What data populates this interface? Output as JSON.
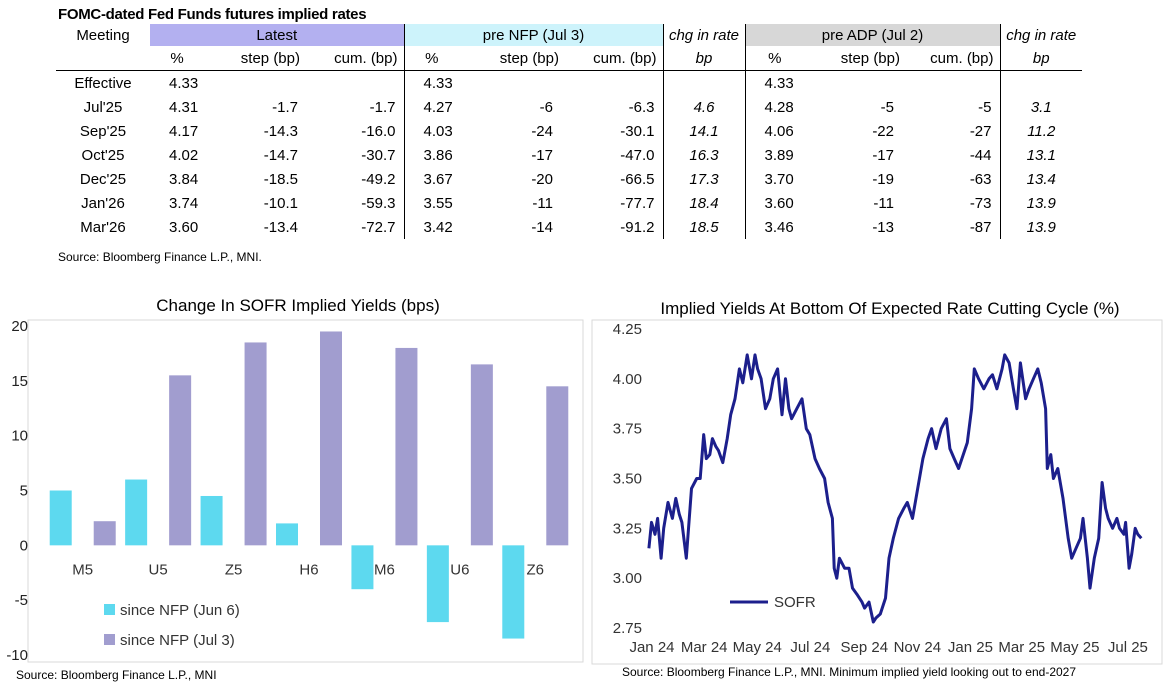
{
  "table": {
    "title": "FOMC-dated Fed Funds futures implied rates",
    "meeting_header": "Meeting",
    "groups": {
      "latest": "Latest",
      "pre_nfp": "pre NFP (Jul 3)",
      "chg1": "chg in rate",
      "pre_adp": "pre ADP (Jul 2)",
      "chg2": "chg in rate"
    },
    "subheaders": {
      "pct": "%",
      "step": "step (bp)",
      "cum": "cum. (bp)",
      "bp": "bp"
    },
    "rows": [
      {
        "meeting": "Effective",
        "lat_pct": "4.33",
        "lat_step": "",
        "lat_cum": "",
        "nfp_pct": "4.33",
        "nfp_step": "",
        "nfp_cum": "",
        "chg1": "",
        "adp_pct": "4.33",
        "adp_step": "",
        "adp_cum": "",
        "chg2": ""
      },
      {
        "meeting": "Jul'25",
        "lat_pct": "4.31",
        "lat_step": "-1.7",
        "lat_cum": "-1.7",
        "nfp_pct": "4.27",
        "nfp_step": "-6",
        "nfp_cum": "-6.3",
        "chg1": "4.6",
        "adp_pct": "4.28",
        "adp_step": "-5",
        "adp_cum": "-5",
        "chg2": "3.1"
      },
      {
        "meeting": "Sep'25",
        "lat_pct": "4.17",
        "lat_step": "-14.3",
        "lat_cum": "-16.0",
        "nfp_pct": "4.03",
        "nfp_step": "-24",
        "nfp_cum": "-30.1",
        "chg1": "14.1",
        "adp_pct": "4.06",
        "adp_step": "-22",
        "adp_cum": "-27",
        "chg2": "11.2"
      },
      {
        "meeting": "Oct'25",
        "lat_pct": "4.02",
        "lat_step": "-14.7",
        "lat_cum": "-30.7",
        "nfp_pct": "3.86",
        "nfp_step": "-17",
        "nfp_cum": "-47.0",
        "chg1": "16.3",
        "adp_pct": "3.89",
        "adp_step": "-17",
        "adp_cum": "-44",
        "chg2": "13.1"
      },
      {
        "meeting": "Dec'25",
        "lat_pct": "3.84",
        "lat_step": "-18.5",
        "lat_cum": "-49.2",
        "nfp_pct": "3.67",
        "nfp_step": "-20",
        "nfp_cum": "-66.5",
        "chg1": "17.3",
        "adp_pct": "3.70",
        "adp_step": "-19",
        "adp_cum": "-63",
        "chg2": "13.4"
      },
      {
        "meeting": "Jan'26",
        "lat_pct": "3.74",
        "lat_step": "-10.1",
        "lat_cum": "-59.3",
        "nfp_pct": "3.55",
        "nfp_step": "-11",
        "nfp_cum": "-77.7",
        "chg1": "18.4",
        "adp_pct": "3.60",
        "adp_step": "-11",
        "adp_cum": "-73",
        "chg2": "13.9"
      },
      {
        "meeting": "Mar'26",
        "lat_pct": "3.60",
        "lat_step": "-13.4",
        "lat_cum": "-72.7",
        "nfp_pct": "3.42",
        "nfp_step": "-14",
        "nfp_cum": "-91.2",
        "chg1": "18.5",
        "adp_pct": "3.46",
        "adp_step": "-13",
        "adp_cum": "-87",
        "chg2": "13.9"
      }
    ],
    "source": "Source: Bloomberg Finance L.P., MNI."
  },
  "colors": {
    "latest_bg": "#b3b0f0",
    "nfp_bg": "#cdf3fb",
    "adp_bg": "#d7d7d7",
    "cyan_bar": "#5dd9ef",
    "purple_bar": "#a19dcf",
    "line": "#1c1f8c"
  },
  "chart_data": [
    {
      "type": "bar",
      "title": "Change In SOFR Implied Yields (bps)",
      "categories": [
        "M5",
        "U5",
        "Z5",
        "H6",
        "M6",
        "U6",
        "Z6"
      ],
      "series": [
        {
          "name": "since NFP (Jun 6)",
          "values": [
            5,
            6,
            4.5,
            2,
            -4,
            -7,
            -8.5
          ]
        },
        {
          "name": "since NFP (Jul 3)",
          "values": [
            2.2,
            15.5,
            18.5,
            19.5,
            18,
            16.5,
            14.5
          ]
        }
      ],
      "ylim": [
        -10,
        20
      ],
      "yticks": [
        "20",
        "15",
        "10",
        "5",
        "0",
        "-5",
        "-10"
      ],
      "legend_position": "bottom-left",
      "source": "Source: Bloomberg Finance L.P., MNI"
    },
    {
      "type": "line",
      "title": "Implied Yields At Bottom Of Expected Rate Cutting Cycle (%)",
      "series": [
        {
          "name": "SOFR",
          "points": [
            [
              "2024-01-02",
              3.15
            ],
            [
              "2024-01-05",
              3.28
            ],
            [
              "2024-01-09",
              3.22
            ],
            [
              "2024-01-12",
              3.3
            ],
            [
              "2024-01-16",
              3.1
            ],
            [
              "2024-01-19",
              3.25
            ],
            [
              "2024-01-24",
              3.38
            ],
            [
              "2024-01-29",
              3.3
            ],
            [
              "2024-02-02",
              3.4
            ],
            [
              "2024-02-06",
              3.32
            ],
            [
              "2024-02-09",
              3.28
            ],
            [
              "2024-02-14",
              3.1
            ],
            [
              "2024-02-20",
              3.45
            ],
            [
              "2024-02-26",
              3.5
            ],
            [
              "2024-03-01",
              3.5
            ],
            [
              "2024-03-05",
              3.72
            ],
            [
              "2024-03-08",
              3.6
            ],
            [
              "2024-03-12",
              3.62
            ],
            [
              "2024-03-15",
              3.7
            ],
            [
              "2024-03-19",
              3.66
            ],
            [
              "2024-03-22",
              3.64
            ],
            [
              "2024-03-27",
              3.58
            ],
            [
              "2024-04-01",
              3.7
            ],
            [
              "2024-04-05",
              3.82
            ],
            [
              "2024-04-10",
              3.9
            ],
            [
              "2024-04-15",
              4.05
            ],
            [
              "2024-04-19",
              3.98
            ],
            [
              "2024-04-24",
              4.12
            ],
            [
              "2024-04-29",
              4.0
            ],
            [
              "2024-05-03",
              4.12
            ],
            [
              "2024-05-06",
              4.05
            ],
            [
              "2024-05-10",
              4.0
            ],
            [
              "2024-05-15",
              3.85
            ],
            [
              "2024-05-20",
              3.9
            ],
            [
              "2024-05-24",
              4.0
            ],
            [
              "2024-05-29",
              4.05
            ],
            [
              "2024-06-03",
              3.82
            ],
            [
              "2024-06-07",
              4.0
            ],
            [
              "2024-06-11",
              3.85
            ],
            [
              "2024-06-14",
              3.8
            ],
            [
              "2024-06-20",
              3.85
            ],
            [
              "2024-06-26",
              3.9
            ],
            [
              "2024-07-01",
              3.75
            ],
            [
              "2024-07-05",
              3.72
            ],
            [
              "2024-07-11",
              3.6
            ],
            [
              "2024-07-16",
              3.55
            ],
            [
              "2024-07-22",
              3.5
            ],
            [
              "2024-07-26",
              3.38
            ],
            [
              "2024-07-31",
              3.3
            ],
            [
              "2024-08-02",
              3.05
            ],
            [
              "2024-08-05",
              3.0
            ],
            [
              "2024-08-08",
              3.1
            ],
            [
              "2024-08-14",
              3.05
            ],
            [
              "2024-08-19",
              3.05
            ],
            [
              "2024-08-23",
              2.95
            ],
            [
              "2024-08-28",
              2.92
            ],
            [
              "2024-09-03",
              2.88
            ],
            [
              "2024-09-06",
              2.85
            ],
            [
              "2024-09-11",
              2.88
            ],
            [
              "2024-09-16",
              2.78
            ],
            [
              "2024-09-19",
              2.8
            ],
            [
              "2024-09-24",
              2.82
            ],
            [
              "2024-09-30",
              2.9
            ],
            [
              "2024-10-04",
              3.1
            ],
            [
              "2024-10-09",
              3.2
            ],
            [
              "2024-10-15",
              3.3
            ],
            [
              "2024-10-21",
              3.35
            ],
            [
              "2024-10-25",
              3.38
            ],
            [
              "2024-10-31",
              3.3
            ],
            [
              "2024-11-06",
              3.45
            ],
            [
              "2024-11-12",
              3.6
            ],
            [
              "2024-11-18",
              3.7
            ],
            [
              "2024-11-22",
              3.75
            ],
            [
              "2024-11-27",
              3.65
            ],
            [
              "2024-12-03",
              3.75
            ],
            [
              "2024-12-09",
              3.8
            ],
            [
              "2024-12-13",
              3.65
            ],
            [
              "2024-12-18",
              3.6
            ],
            [
              "2024-12-23",
              3.55
            ],
            [
              "2025-01-02",
              3.68
            ],
            [
              "2025-01-07",
              3.85
            ],
            [
              "2025-01-10",
              4.05
            ],
            [
              "2025-01-15",
              4.0
            ],
            [
              "2025-01-21",
              3.95
            ],
            [
              "2025-01-27",
              4.0
            ],
            [
              "2025-01-31",
              4.02
            ],
            [
              "2025-02-05",
              3.95
            ],
            [
              "2025-02-11",
              4.05
            ],
            [
              "2025-02-14",
              4.12
            ],
            [
              "2025-02-19",
              4.08
            ],
            [
              "2025-02-24",
              3.95
            ],
            [
              "2025-02-28",
              3.85
            ],
            [
              "2025-03-04",
              4.08
            ],
            [
              "2025-03-10",
              3.9
            ],
            [
              "2025-03-14",
              3.95
            ],
            [
              "2025-03-19",
              4.0
            ],
            [
              "2025-03-24",
              4.05
            ],
            [
              "2025-03-28",
              3.98
            ],
            [
              "2025-04-02",
              3.85
            ],
            [
              "2025-04-04",
              3.55
            ],
            [
              "2025-04-08",
              3.62
            ],
            [
              "2025-04-11",
              3.5
            ],
            [
              "2025-04-16",
              3.55
            ],
            [
              "2025-04-22",
              3.4
            ],
            [
              "2025-04-28",
              3.2
            ],
            [
              "2025-05-02",
              3.1
            ],
            [
              "2025-05-07",
              3.15
            ],
            [
              "2025-05-12",
              3.2
            ],
            [
              "2025-05-15",
              3.3
            ],
            [
              "2025-05-20",
              3.1
            ],
            [
              "2025-05-23",
              2.95
            ],
            [
              "2025-05-28",
              3.1
            ],
            [
              "2025-06-02",
              3.2
            ],
            [
              "2025-06-06",
              3.48
            ],
            [
              "2025-06-10",
              3.35
            ],
            [
              "2025-06-13",
              3.3
            ],
            [
              "2025-06-18",
              3.25
            ],
            [
              "2025-06-23",
              3.3
            ],
            [
              "2025-06-26",
              3.25
            ],
            [
              "2025-07-01",
              3.22
            ],
            [
              "2025-07-03",
              3.28
            ],
            [
              "2025-07-07",
              3.05
            ],
            [
              "2025-07-10",
              3.12
            ],
            [
              "2025-07-14",
              3.25
            ],
            [
              "2025-07-17",
              3.22
            ],
            [
              "2025-07-21",
              3.2
            ]
          ]
        }
      ],
      "xticks": [
        "Jan 24",
        "Mar 24",
        "May 24",
        "Jul 24",
        "Sep 24",
        "Nov 24",
        "Jan 25",
        "Mar 25",
        "May 25",
        "Jul 25"
      ],
      "xlim": [
        "2024-01-01",
        "2025-07-31"
      ],
      "yticks": [
        "4.25",
        "4.00",
        "3.75",
        "3.50",
        "3.25",
        "3.00",
        "2.75"
      ],
      "ylim": [
        2.75,
        4.25
      ],
      "legend_position": "bottom-left",
      "source": "Source: Bloomberg Finance L.P., MNI. Minimum implied yield looking out to end-2027"
    }
  ]
}
